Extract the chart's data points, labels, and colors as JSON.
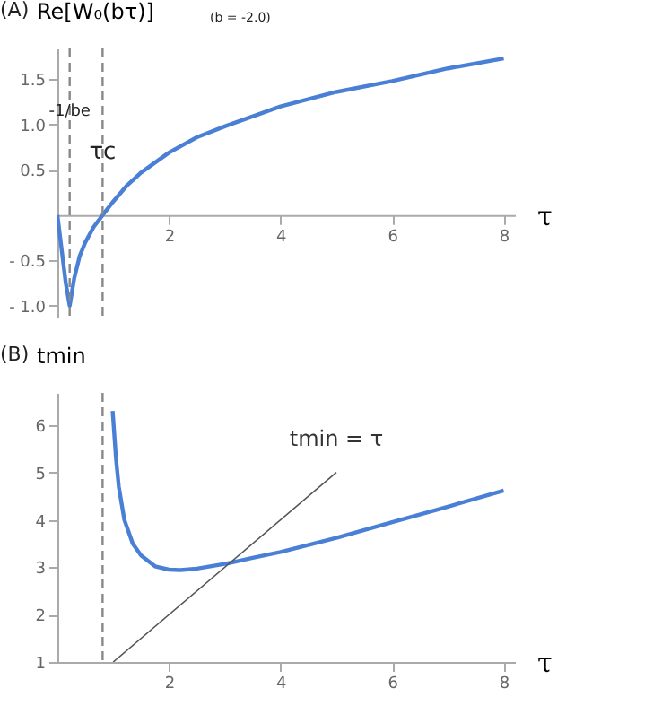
{
  "chart_data": [
    {
      "type": "line",
      "ylabel": "Re[W₀(bτ)]",
      "xlabel": "τ",
      "annotations": [
        "(A)",
        "(b = -2.0)",
        {
          "text": "-1/be",
          "x": 0.22,
          "y": 1.0
        },
        {
          "text": "τc",
          "x": 0.81,
          "y": 0.5
        }
      ],
      "x": [
        0,
        0.05,
        0.1,
        0.15,
        0.22,
        0.3,
        0.4,
        0.5,
        0.65,
        0.81,
        1.0,
        1.25,
        1.5,
        2,
        2.5,
        3,
        4,
        5,
        6,
        7,
        8
      ],
      "series": [
        {
          "color": "#4a7fd6",
          "values": [
            0,
            -0.25,
            -0.5,
            -0.75,
            -1.0,
            -0.7,
            -0.45,
            -0.3,
            -0.13,
            0,
            0.15,
            0.33,
            0.47,
            0.69,
            0.86,
            0.98,
            1.2,
            1.36,
            1.48,
            1.62,
            1.73
          ]
        }
      ],
      "xlim": [
        0,
        8.2
      ],
      "xticks": [
        2,
        4,
        6,
        8
      ],
      "ylim": [
        -1.13,
        1.84
      ],
      "yticks": [
        {
          "value": -1.0,
          "label": "- 1.0"
        },
        {
          "value": -0.5,
          "label": "- 0.5"
        },
        0.5,
        {
          "value": 1.0,
          "label": "1.0"
        },
        1.5
      ],
      "ref_lines": [
        {
          "axis": "x",
          "value": 0.22,
          "color": "#888888",
          "line_style": "dashed"
        },
        {
          "axis": "x",
          "value": 0.81,
          "color": "#888888",
          "line_style": "dashed"
        }
      ],
      "grid": false
    },
    {
      "type": "line",
      "ylabel": "tmin",
      "xlabel": "τ",
      "annotations": [
        "(B)"
      ],
      "series": [
        {
          "color": "#4a7fd6",
          "x": [
            0.99,
            1.05,
            1.1,
            1.2,
            1.35,
            1.5,
            1.75,
            2,
            2.2,
            2.5,
            3,
            3.5,
            4,
            5,
            6,
            7,
            8
          ],
          "values": [
            6.3,
            5.3,
            4.7,
            4.0,
            3.5,
            3.25,
            3.02,
            2.95,
            2.94,
            2.97,
            3.07,
            3.2,
            3.32,
            3.62,
            3.95,
            4.28,
            4.62
          ]
        },
        {
          "name": "tmin = τ",
          "color": "#555555",
          "x": [
            1,
            5
          ],
          "values": [
            1,
            5
          ]
        }
      ],
      "xlim": [
        0,
        8.2
      ],
      "xticks": [
        2,
        4,
        6,
        8
      ],
      "ylim": [
        1,
        6.68
      ],
      "yticks": [
        1,
        2,
        3,
        4,
        5,
        6
      ],
      "ref_lines": [
        {
          "axis": "x",
          "value": 0.81,
          "color": "#888888",
          "line_style": "dashed"
        }
      ],
      "grid": false
    }
  ]
}
